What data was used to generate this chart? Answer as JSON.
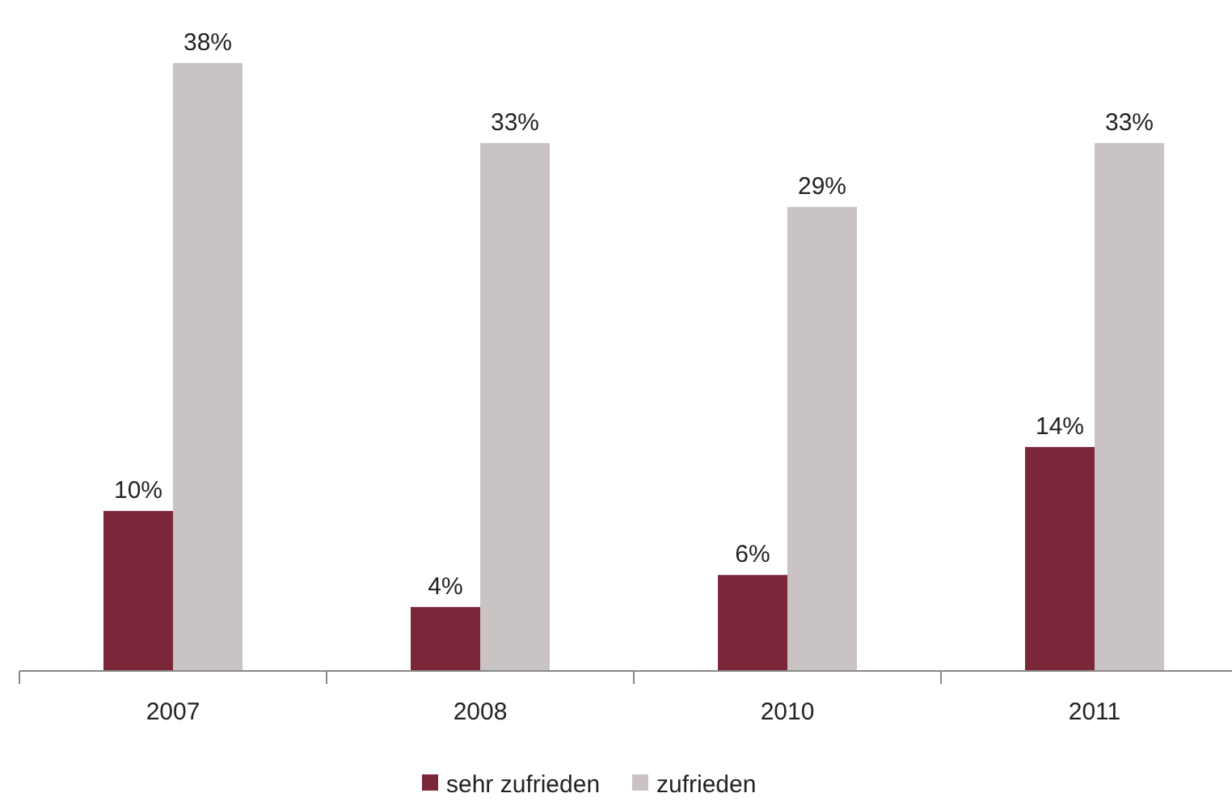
{
  "chart_data": {
    "type": "bar",
    "categories": [
      "2007",
      "2008",
      "2010",
      "2011"
    ],
    "series": [
      {
        "name": "sehr zufrieden",
        "color": "#7b2639",
        "values": [
          10,
          4,
          6,
          14
        ],
        "value_labels": [
          "10%",
          "4%",
          "6%",
          "14%"
        ]
      },
      {
        "name": "zufrieden",
        "color": "#c9c3c4",
        "values": [
          38,
          33,
          29,
          33
        ],
        "value_labels": [
          "38%",
          "33%",
          "29%",
          "33%"
        ]
      }
    ],
    "legend": "bottom"
  }
}
